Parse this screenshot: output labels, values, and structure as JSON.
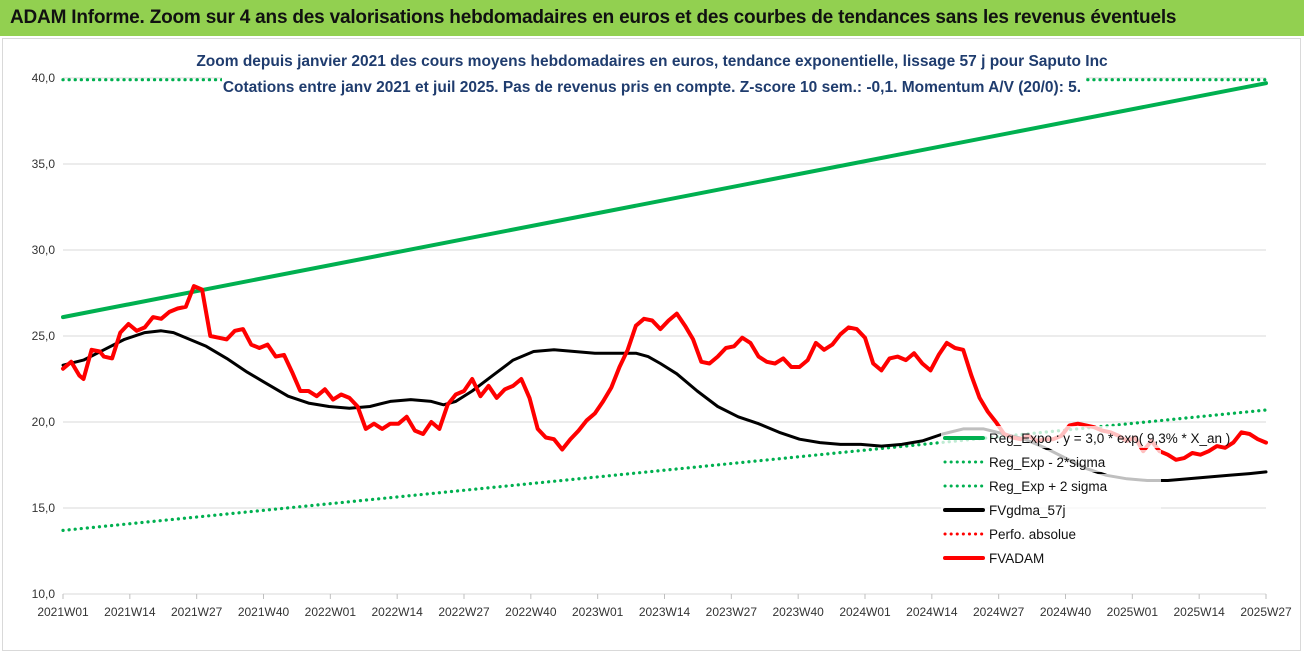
{
  "banner": {
    "title": "ADAM Informe. Zoom sur 4 ans des valorisations hebdomadaires en euros et des courbes de tendances sans les revenus éventuels",
    "color": "#92d050"
  },
  "chart_data": {
    "type": "line",
    "title_lines": [
      "Zoom depuis janvier 2021 des cours moyens hebdomadaires en euros, tendance exponentielle, lissage 57 j pour Saputo Inc",
      "Cotations entre janv 2021 et juil 2025. Pas de revenus pris en compte. Z-score 10 sem.: -0,1. Momentum A/V (20/0): 5."
    ],
    "xlabel": "",
    "ylabel": "",
    "ylim": [
      10,
      40
    ],
    "y_ticks": [
      "10,0",
      "15,0",
      "20,0",
      "25,0",
      "30,0",
      "35,0",
      "40,0"
    ],
    "x_ticks": [
      "2021W01",
      "2021W14",
      "2021W27",
      "2021W40",
      "2022W01",
      "2022W14",
      "2022W27",
      "2022W40",
      "2023W01",
      "2023W14",
      "2023W27",
      "2023W40",
      "2024W01",
      "2024W14",
      "2024W27",
      "2024W40",
      "2025W01",
      "2025W14",
      "2025W27"
    ],
    "grid": "horizontal",
    "legend_position": "right",
    "series": [
      {
        "name": "Reg_Expo : y = 3,0 * exp( 9,3% * X_an )",
        "color": "#00b050",
        "style": "solid",
        "points": [
          [
            0,
            26.1
          ],
          [
            234,
            39.7
          ]
        ]
      },
      {
        "name": "Reg_Exp - 2*sigma",
        "color": "#00b050",
        "style": "dotted",
        "points": [
          [
            0,
            13.7
          ],
          [
            234,
            20.7
          ]
        ]
      },
      {
        "name": "Reg_Exp + 2 sigma",
        "color": "#00b050",
        "style": "dotted",
        "points": [
          [
            0,
            39.9
          ],
          [
            234,
            39.9
          ]
        ]
      },
      {
        "name": "FVgdma_57j",
        "color": "#000000",
        "style": "solid",
        "points": [
          [
            0,
            23.3
          ],
          [
            5,
            23.6
          ],
          [
            10,
            24.2
          ],
          [
            15,
            24.8
          ],
          [
            20,
            25.2
          ],
          [
            24,
            25.3
          ],
          [
            27,
            25.2
          ],
          [
            30,
            24.9
          ],
          [
            35,
            24.4
          ],
          [
            40,
            23.7
          ],
          [
            45,
            22.9
          ],
          [
            50,
            22.2
          ],
          [
            55,
            21.5
          ],
          [
            60,
            21.1
          ],
          [
            65,
            20.9
          ],
          [
            70,
            20.8
          ],
          [
            75,
            20.9
          ],
          [
            80,
            21.2
          ],
          [
            85,
            21.3
          ],
          [
            90,
            21.2
          ],
          [
            93,
            21.0
          ],
          [
            96,
            21.2
          ],
          [
            100,
            21.8
          ],
          [
            105,
            22.7
          ],
          [
            110,
            23.6
          ],
          [
            115,
            24.1
          ],
          [
            120,
            24.2
          ],
          [
            125,
            24.1
          ],
          [
            130,
            24.0
          ],
          [
            135,
            24.0
          ],
          [
            140,
            24.0
          ],
          [
            143,
            23.8
          ],
          [
            146,
            23.4
          ],
          [
            150,
            22.8
          ],
          [
            155,
            21.8
          ],
          [
            160,
            20.9
          ],
          [
            165,
            20.3
          ],
          [
            170,
            19.9
          ],
          [
            175,
            19.4
          ],
          [
            180,
            19.0
          ],
          [
            185,
            18.8
          ],
          [
            190,
            18.7
          ],
          [
            195,
            18.7
          ],
          [
            200,
            18.6
          ],
          [
            205,
            18.7
          ],
          [
            210,
            18.9
          ],
          [
            215,
            19.3
          ],
          [
            220,
            19.6
          ],
          [
            225,
            19.6
          ],
          [
            230,
            19.3
          ],
          [
            235,
            19.0
          ],
          [
            240,
            18.5
          ],
          [
            245,
            17.9
          ],
          [
            250,
            17.3
          ],
          [
            255,
            16.9
          ],
          [
            260,
            16.7
          ],
          [
            265,
            16.6
          ],
          [
            270,
            16.6
          ],
          [
            275,
            16.7
          ],
          [
            280,
            16.8
          ],
          [
            285,
            16.9
          ],
          [
            290,
            17.0
          ],
          [
            294,
            17.1
          ]
        ]
      },
      {
        "name": "Perfo. absolue",
        "color": "#ff0000",
        "style": "dotted",
        "points": []
      },
      {
        "name": "FVADAM",
        "color": "#ff0000",
        "style": "solid",
        "points": [
          [
            0,
            23.1
          ],
          [
            2,
            23.5
          ],
          [
            4,
            22.7
          ],
          [
            5,
            22.5
          ],
          [
            7,
            24.2
          ],
          [
            9,
            24.1
          ],
          [
            10,
            23.8
          ],
          [
            12,
            23.7
          ],
          [
            14,
            25.2
          ],
          [
            16,
            25.7
          ],
          [
            18,
            25.3
          ],
          [
            20,
            25.5
          ],
          [
            22,
            26.1
          ],
          [
            24,
            26.0
          ],
          [
            26,
            26.4
          ],
          [
            28,
            26.6
          ],
          [
            30,
            26.7
          ],
          [
            32,
            27.9
          ],
          [
            34,
            27.7
          ],
          [
            36,
            25.0
          ],
          [
            38,
            24.9
          ],
          [
            40,
            24.8
          ],
          [
            42,
            25.3
          ],
          [
            44,
            25.4
          ],
          [
            46,
            24.5
          ],
          [
            48,
            24.3
          ],
          [
            50,
            24.5
          ],
          [
            52,
            23.8
          ],
          [
            54,
            23.9
          ],
          [
            56,
            22.9
          ],
          [
            58,
            21.8
          ],
          [
            60,
            21.8
          ],
          [
            62,
            21.5
          ],
          [
            64,
            21.9
          ],
          [
            66,
            21.3
          ],
          [
            68,
            21.6
          ],
          [
            70,
            21.4
          ],
          [
            72,
            20.9
          ],
          [
            74,
            19.6
          ],
          [
            76,
            19.9
          ],
          [
            78,
            19.6
          ],
          [
            80,
            19.9
          ],
          [
            82,
            19.9
          ],
          [
            84,
            20.3
          ],
          [
            86,
            19.5
          ],
          [
            88,
            19.3
          ],
          [
            90,
            20.0
          ],
          [
            92,
            19.6
          ],
          [
            94,
            21.0
          ],
          [
            96,
            21.6
          ],
          [
            98,
            21.8
          ],
          [
            100,
            22.5
          ],
          [
            102,
            21.5
          ],
          [
            104,
            22.1
          ],
          [
            106,
            21.4
          ],
          [
            108,
            21.9
          ],
          [
            110,
            22.1
          ],
          [
            112,
            22.5
          ],
          [
            114,
            21.4
          ],
          [
            116,
            19.6
          ],
          [
            118,
            19.1
          ],
          [
            120,
            19.0
          ],
          [
            122,
            18.4
          ],
          [
            124,
            19.0
          ],
          [
            126,
            19.5
          ],
          [
            128,
            20.1
          ],
          [
            130,
            20.5
          ],
          [
            132,
            21.2
          ],
          [
            134,
            22.0
          ],
          [
            136,
            23.2
          ],
          [
            138,
            24.2
          ],
          [
            140,
            25.6
          ],
          [
            142,
            26.0
          ],
          [
            144,
            25.9
          ],
          [
            146,
            25.4
          ],
          [
            148,
            25.9
          ],
          [
            150,
            26.3
          ],
          [
            152,
            25.6
          ],
          [
            154,
            24.8
          ],
          [
            156,
            23.5
          ],
          [
            158,
            23.4
          ],
          [
            160,
            23.8
          ],
          [
            162,
            24.3
          ],
          [
            164,
            24.4
          ],
          [
            166,
            24.9
          ],
          [
            168,
            24.6
          ],
          [
            170,
            23.8
          ],
          [
            172,
            23.5
          ],
          [
            174,
            23.4
          ],
          [
            176,
            23.7
          ],
          [
            178,
            23.2
          ],
          [
            180,
            23.2
          ],
          [
            182,
            23.6
          ],
          [
            184,
            24.6
          ],
          [
            186,
            24.2
          ],
          [
            188,
            24.5
          ],
          [
            190,
            25.1
          ],
          [
            192,
            25.5
          ],
          [
            194,
            25.4
          ],
          [
            196,
            24.9
          ],
          [
            198,
            23.4
          ],
          [
            200,
            23.0
          ],
          [
            202,
            23.7
          ],
          [
            204,
            23.8
          ],
          [
            206,
            23.6
          ],
          [
            208,
            24.0
          ],
          [
            210,
            23.4
          ],
          [
            212,
            23.0
          ],
          [
            214,
            23.9
          ],
          [
            216,
            24.6
          ],
          [
            218,
            24.3
          ],
          [
            220,
            24.2
          ],
          [
            222,
            22.7
          ],
          [
            224,
            21.4
          ],
          [
            226,
            20.6
          ],
          [
            228,
            20.0
          ],
          [
            230,
            19.3
          ],
          [
            232,
            19.1
          ],
          [
            234,
            19.0
          ],
          [
            236,
            19.2
          ],
          [
            238,
            18.9
          ],
          [
            240,
            19.0
          ],
          [
            242,
            19.0
          ],
          [
            244,
            19.2
          ],
          [
            246,
            19.8
          ],
          [
            248,
            19.9
          ],
          [
            250,
            19.8
          ],
          [
            252,
            19.7
          ],
          [
            254,
            19.5
          ],
          [
            256,
            19.4
          ],
          [
            258,
            19.2
          ],
          [
            260,
            18.9
          ],
          [
            262,
            19.1
          ],
          [
            264,
            18.3
          ],
          [
            266,
            18.9
          ],
          [
            268,
            18.3
          ],
          [
            270,
            18.1
          ],
          [
            272,
            17.8
          ],
          [
            274,
            17.9
          ],
          [
            276,
            18.2
          ],
          [
            278,
            18.1
          ],
          [
            280,
            18.3
          ],
          [
            282,
            18.6
          ],
          [
            284,
            18.5
          ],
          [
            286,
            18.8
          ],
          [
            288,
            19.4
          ],
          [
            290,
            19.3
          ],
          [
            292,
            19.0
          ],
          [
            294,
            18.8
          ]
        ]
      }
    ]
  }
}
